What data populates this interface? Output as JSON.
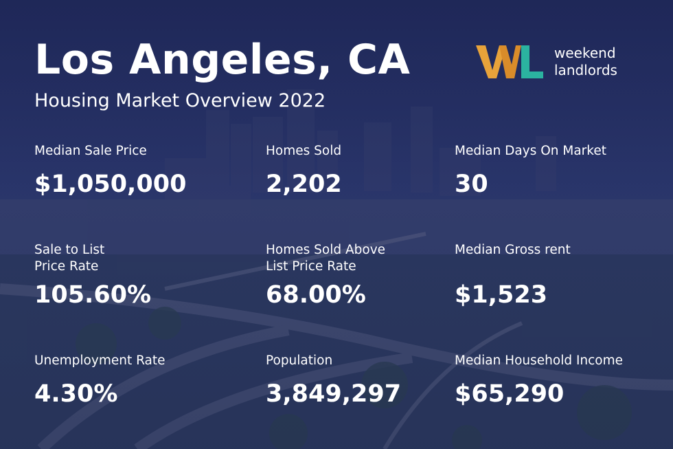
{
  "header": {
    "title": "Los Angeles, CA",
    "subtitle": "Housing Market Overview 2022"
  },
  "logo": {
    "mark_icon": "wl-logo-icon",
    "line1": "weekend",
    "line2": "landlords",
    "colors": {
      "w": "#e8a33a",
      "l": "#2bb3a0"
    }
  },
  "stats": [
    {
      "label": "Median Sale Price",
      "value": "$1,050,000"
    },
    {
      "label": "Homes Sold",
      "value": "2,202"
    },
    {
      "label": "Median Days On Market",
      "value": "30"
    },
    {
      "label": "Sale to List\nPrice Rate",
      "value": "105.60%"
    },
    {
      "label": "Homes Sold Above\nList Price Rate",
      "value": "68.00%"
    },
    {
      "label": "Median Gross rent",
      "value": "$1,523"
    },
    {
      "label": "Unemployment Rate",
      "value": "4.30%"
    },
    {
      "label": "Population",
      "value": "3,849,297"
    },
    {
      "label": "Median Household Income",
      "value": "$65,290"
    }
  ],
  "background": {
    "overlay_color": "#22306a"
  }
}
